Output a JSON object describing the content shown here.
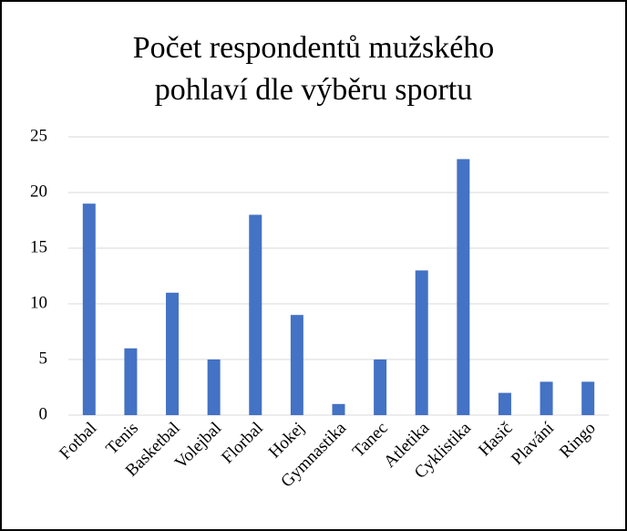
{
  "chart_data": {
    "type": "bar",
    "title": "Počet respondentů mužského pohlaví dle výběru sportu",
    "categories": [
      "Fotbal",
      "Tenis",
      "Basketbal",
      "Volejbal",
      "Florbal",
      "Hokej",
      "Gymnastika",
      "Tanec",
      "Atletika",
      "Cyklistika",
      "Hasič",
      "Plavání",
      "Ringo"
    ],
    "values": [
      19,
      6,
      11,
      5,
      18,
      9,
      1,
      5,
      13,
      23,
      2,
      3,
      3
    ],
    "color": "#4472c4",
    "ylim": [
      0,
      25
    ],
    "yticks": [
      0,
      5,
      10,
      15,
      20,
      25
    ],
    "grid": true
  }
}
